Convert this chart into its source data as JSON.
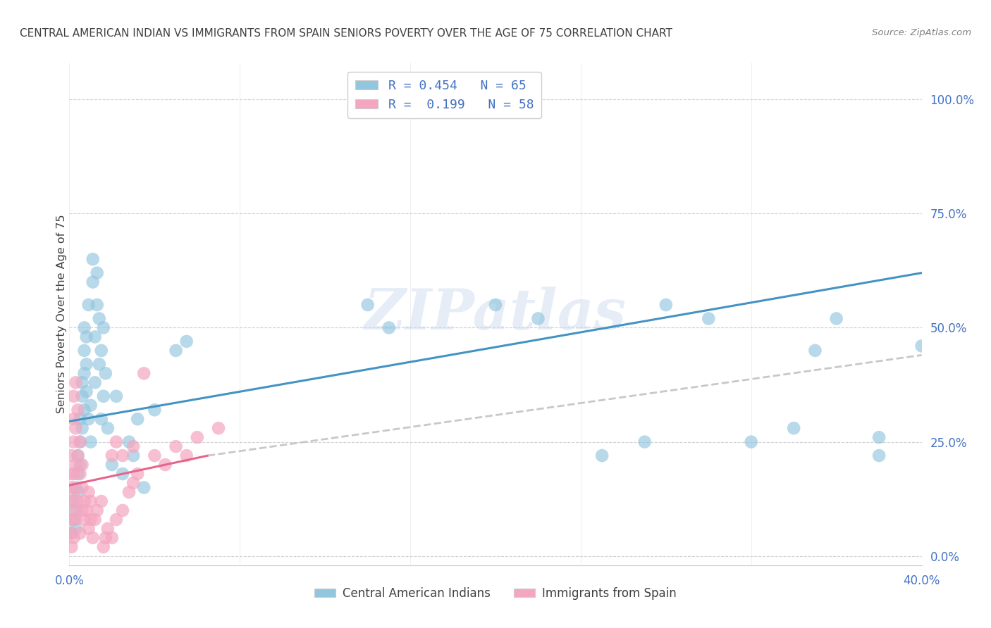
{
  "title": "CENTRAL AMERICAN INDIAN VS IMMIGRANTS FROM SPAIN SENIORS POVERTY OVER THE AGE OF 75 CORRELATION CHART",
  "source": "Source: ZipAtlas.com",
  "ylabel": "Seniors Poverty Over the Age of 75",
  "ytick_labels": [
    "0.0%",
    "25.0%",
    "50.0%",
    "75.0%",
    "100.0%"
  ],
  "ytick_values": [
    0.0,
    0.25,
    0.5,
    0.75,
    1.0
  ],
  "xlim": [
    0.0,
    0.4
  ],
  "ylim": [
    -0.02,
    1.08
  ],
  "watermark_text": "ZIPatlas",
  "legend_labels": [
    "Central American Indians",
    "Immigrants from Spain"
  ],
  "legend_R": [
    0.454,
    0.199
  ],
  "legend_N": [
    65,
    58
  ],
  "blue_color": "#92c5de",
  "pink_color": "#f4a6c0",
  "blue_line_color": "#4393c3",
  "pink_line_color": "#e8648a",
  "gray_dash_color": "#c8c8c8",
  "axis_label_color": "#4472c4",
  "title_color": "#404040",
  "source_color": "#808080",
  "blue_scatter": [
    [
      0.001,
      0.05
    ],
    [
      0.002,
      0.08
    ],
    [
      0.002,
      0.12
    ],
    [
      0.003,
      0.06
    ],
    [
      0.003,
      0.1
    ],
    [
      0.003,
      0.15
    ],
    [
      0.004,
      0.14
    ],
    [
      0.004,
      0.18
    ],
    [
      0.004,
      0.22
    ],
    [
      0.005,
      0.2
    ],
    [
      0.005,
      0.25
    ],
    [
      0.005,
      0.3
    ],
    [
      0.006,
      0.28
    ],
    [
      0.006,
      0.35
    ],
    [
      0.006,
      0.38
    ],
    [
      0.007,
      0.32
    ],
    [
      0.007,
      0.4
    ],
    [
      0.007,
      0.45
    ],
    [
      0.007,
      0.5
    ],
    [
      0.008,
      0.36
    ],
    [
      0.008,
      0.42
    ],
    [
      0.008,
      0.48
    ],
    [
      0.009,
      0.3
    ],
    [
      0.009,
      0.55
    ],
    [
      0.01,
      0.25
    ],
    [
      0.01,
      0.33
    ],
    [
      0.011,
      0.6
    ],
    [
      0.011,
      0.65
    ],
    [
      0.012,
      0.38
    ],
    [
      0.012,
      0.48
    ],
    [
      0.013,
      0.55
    ],
    [
      0.013,
      0.62
    ],
    [
      0.014,
      0.42
    ],
    [
      0.014,
      0.52
    ],
    [
      0.015,
      0.3
    ],
    [
      0.015,
      0.45
    ],
    [
      0.016,
      0.35
    ],
    [
      0.016,
      0.5
    ],
    [
      0.017,
      0.4
    ],
    [
      0.018,
      0.28
    ],
    [
      0.02,
      0.2
    ],
    [
      0.022,
      0.35
    ],
    [
      0.025,
      0.18
    ],
    [
      0.028,
      0.25
    ],
    [
      0.03,
      0.22
    ],
    [
      0.032,
      0.3
    ],
    [
      0.035,
      0.15
    ],
    [
      0.04,
      0.32
    ],
    [
      0.05,
      0.45
    ],
    [
      0.055,
      0.47
    ],
    [
      0.14,
      0.55
    ],
    [
      0.15,
      0.5
    ],
    [
      0.2,
      0.55
    ],
    [
      0.22,
      0.52
    ],
    [
      0.25,
      0.22
    ],
    [
      0.27,
      0.25
    ],
    [
      0.28,
      0.55
    ],
    [
      0.3,
      0.52
    ],
    [
      0.32,
      0.25
    ],
    [
      0.34,
      0.28
    ],
    [
      0.35,
      0.45
    ],
    [
      0.36,
      0.52
    ],
    [
      0.38,
      0.22
    ],
    [
      0.38,
      0.26
    ],
    [
      0.4,
      0.46
    ]
  ],
  "pink_scatter": [
    [
      0.001,
      0.02
    ],
    [
      0.001,
      0.05
    ],
    [
      0.001,
      0.08
    ],
    [
      0.001,
      0.12
    ],
    [
      0.001,
      0.15
    ],
    [
      0.001,
      0.18
    ],
    [
      0.001,
      0.22
    ],
    [
      0.002,
      0.04
    ],
    [
      0.002,
      0.1
    ],
    [
      0.002,
      0.14
    ],
    [
      0.002,
      0.18
    ],
    [
      0.002,
      0.25
    ],
    [
      0.002,
      0.3
    ],
    [
      0.002,
      0.35
    ],
    [
      0.003,
      0.08
    ],
    [
      0.003,
      0.2
    ],
    [
      0.003,
      0.28
    ],
    [
      0.003,
      0.38
    ],
    [
      0.004,
      0.12
    ],
    [
      0.004,
      0.22
    ],
    [
      0.004,
      0.32
    ],
    [
      0.005,
      0.05
    ],
    [
      0.005,
      0.18
    ],
    [
      0.005,
      0.25
    ],
    [
      0.006,
      0.1
    ],
    [
      0.006,
      0.15
    ],
    [
      0.006,
      0.2
    ],
    [
      0.007,
      0.08
    ],
    [
      0.007,
      0.12
    ],
    [
      0.008,
      0.1
    ],
    [
      0.009,
      0.06
    ],
    [
      0.009,
      0.14
    ],
    [
      0.01,
      0.08
    ],
    [
      0.01,
      0.12
    ],
    [
      0.011,
      0.04
    ],
    [
      0.012,
      0.08
    ],
    [
      0.013,
      0.1
    ],
    [
      0.015,
      0.12
    ],
    [
      0.016,
      0.02
    ],
    [
      0.017,
      0.04
    ],
    [
      0.018,
      0.06
    ],
    [
      0.02,
      0.04
    ],
    [
      0.02,
      0.22
    ],
    [
      0.022,
      0.08
    ],
    [
      0.022,
      0.25
    ],
    [
      0.025,
      0.1
    ],
    [
      0.025,
      0.22
    ],
    [
      0.028,
      0.14
    ],
    [
      0.03,
      0.16
    ],
    [
      0.03,
      0.24
    ],
    [
      0.032,
      0.18
    ],
    [
      0.035,
      0.4
    ],
    [
      0.04,
      0.22
    ],
    [
      0.045,
      0.2
    ],
    [
      0.05,
      0.24
    ],
    [
      0.055,
      0.22
    ],
    [
      0.06,
      0.26
    ],
    [
      0.07,
      0.28
    ]
  ],
  "blue_line_full": {
    "x0": 0.0,
    "y0": 0.295,
    "x1": 0.4,
    "y1": 0.62
  },
  "pink_line_solid": {
    "x0": 0.0,
    "y0": 0.155,
    "x1": 0.065,
    "y1": 0.22
  },
  "pink_line_dash": {
    "x0": 0.065,
    "y0": 0.22,
    "x1": 0.4,
    "y1": 0.44
  },
  "blue_line_dash": {
    "x0": 0.0,
    "y0": 0.0,
    "x1": 0.0,
    "y1": 0.0
  }
}
